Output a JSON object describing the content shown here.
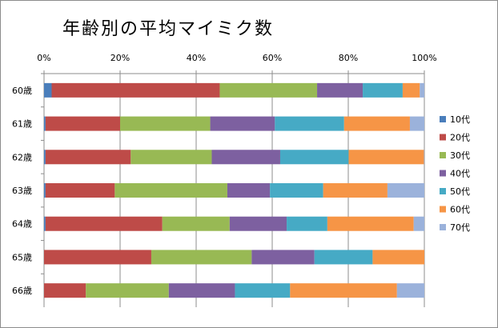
{
  "chart_data": {
    "type": "bar",
    "orientation": "horizontal",
    "stacked": "percent",
    "title": "年齢別の平均マイミク数",
    "x_ticks": [
      "0%",
      "20%",
      "40%",
      "60%",
      "80%",
      "100%"
    ],
    "xlim": [
      0,
      100
    ],
    "grid": true,
    "legend_position": "right",
    "categories": [
      "60歳",
      "61歳",
      "62歳",
      "63歳",
      "64歳",
      "65歳",
      "66歳"
    ],
    "series": [
      {
        "name": "10代",
        "color": "#4a7ebb",
        "values": [
          2.0,
          0.4,
          0.4,
          0.4,
          0.4,
          0.0,
          0.0
        ]
      },
      {
        "name": "20代",
        "color": "#be4b48",
        "values": [
          44.2,
          19.6,
          22.4,
          18.2,
          30.7,
          28.2,
          11.0
        ]
      },
      {
        "name": "30代",
        "color": "#98b954",
        "values": [
          25.6,
          23.7,
          21.3,
          29.6,
          17.7,
          26.4,
          21.8
        ]
      },
      {
        "name": "40代",
        "color": "#7d60a0",
        "values": [
          12.0,
          17.0,
          18.0,
          11.2,
          15.0,
          16.5,
          17.4
        ]
      },
      {
        "name": "50代",
        "color": "#46aac5",
        "values": [
          10.5,
          18.2,
          18.0,
          14.0,
          10.7,
          15.3,
          14.5
        ]
      },
      {
        "name": "60代",
        "color": "#f69546",
        "values": [
          4.5,
          17.3,
          19.8,
          16.9,
          22.7,
          13.6,
          28.1
        ]
      },
      {
        "name": "70代",
        "color": "#9bb2db",
        "values": [
          1.2,
          3.8,
          0.1,
          9.7,
          2.8,
          0.0,
          7.2
        ]
      }
    ]
  }
}
